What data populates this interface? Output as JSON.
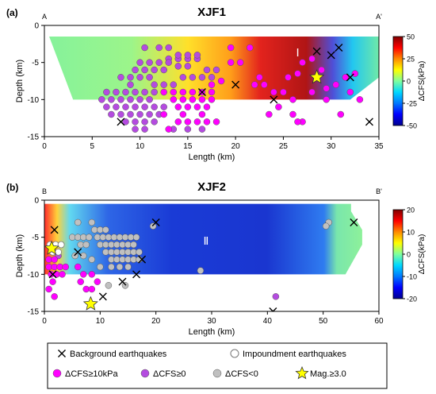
{
  "colors": {
    "background_marker": "#000000",
    "cfs_ge_10kpa": "#ff00ff",
    "cfs_ge_0": "#b44be0",
    "cfs_lt_0": "#c0c0c0",
    "mag_star": "#ffff00",
    "colormap": [
      "#00008f",
      "#0000ff",
      "#0078ff",
      "#00d8ff",
      "#7fff9f",
      "#ffff00",
      "#ff8a00",
      "#ff0000",
      "#800000"
    ]
  },
  "chart_data": [
    {
      "type": "scatter",
      "panel_label": "(a)",
      "title": "XJF1",
      "profile_start": "A",
      "profile_end": "A'",
      "xlabel": "Length (km)",
      "ylabel": "Depth (km)",
      "xlim": [
        0,
        35
      ],
      "ylim": [
        -15,
        0
      ],
      "xticks": [
        0,
        5,
        10,
        15,
        20,
        25,
        30,
        35
      ],
      "yticks": [
        0,
        -5,
        -10,
        -15
      ],
      "region_label": "Ⅰ",
      "colorbar": {
        "label": "ΔCFS(kPa)",
        "min": -50,
        "max": 50,
        "ticks": [
          50,
          25,
          0,
          -25,
          -50
        ]
      },
      "series": [
        {
          "name": "Background earthquakes",
          "marker": "x",
          "x": [
            8,
            16.5,
            20,
            24,
            28.5,
            30,
            30.8,
            32,
            34
          ],
          "y": [
            -13,
            -9,
            -8,
            -10,
            -3.5,
            -4,
            -3,
            -7,
            -13
          ]
        },
        {
          "name": "ΔCFS≥10kPa",
          "marker": "circle",
          "x": [
            12.5,
            13.5,
            14.5,
            15.5,
            16.5,
            17.5,
            13.5,
            14.5,
            15.5,
            16.5,
            17.5,
            14,
            15,
            16,
            17,
            12.5,
            14.5,
            16.5,
            14,
            15,
            16,
            17,
            18,
            13,
            17.5,
            18.5,
            19.5,
            20.5,
            19.5,
            21.5,
            22.5,
            22,
            23,
            24,
            25.5,
            26.5,
            27,
            28,
            29,
            29.5,
            25,
            26,
            28,
            29.5,
            30.5,
            31.5,
            23.5,
            26,
            27,
            31,
            32.5,
            32,
            33,
            24.5,
            26.5
          ],
          "y": [
            -9,
            -9,
            -9,
            -9,
            -9,
            -9,
            -10,
            -10,
            -10,
            -10,
            -10,
            -11,
            -11,
            -11,
            -11,
            -12,
            -12,
            -12,
            -13,
            -13,
            -13,
            -13,
            -13,
            -14,
            -8,
            -7.5,
            -5,
            -5,
            -3,
            -3,
            -7,
            -8,
            -8,
            -9,
            -7,
            -6.5,
            -5,
            -4.5,
            -6,
            -8.5,
            -9,
            -10,
            -9,
            -10,
            -8,
            -7,
            -12,
            -12,
            -13,
            -12,
            -6.5,
            -9,
            -10,
            -11,
            -13
          ]
        },
        {
          "name": "ΔCFS≥0",
          "marker": "circle",
          "x": [
            6.5,
            7.5,
            8.5,
            9.5,
            10.5,
            11.5,
            6,
            7,
            8,
            9,
            10,
            11,
            6.5,
            7.5,
            8.5,
            9.5,
            10.5,
            11.5,
            12.5,
            7,
            8,
            9,
            10,
            11,
            12,
            8.5,
            9.5,
            10.5,
            11.5,
            8,
            9,
            10,
            11,
            9.5,
            10.5,
            11.5,
            12.5,
            13,
            14,
            15,
            16,
            10,
            11,
            12,
            13,
            14,
            15,
            9,
            11.5,
            12.5,
            13.5,
            14.5,
            15.5,
            16.5,
            17.5,
            10.5,
            12,
            13,
            14,
            15,
            16,
            17,
            18,
            9.5,
            13.5,
            15,
            16.5,
            10.5
          ],
          "y": [
            -9,
            -9,
            -9,
            -9,
            -9,
            -9,
            -10,
            -10,
            -10,
            -10,
            -10,
            -10,
            -11,
            -11,
            -11,
            -11,
            -11,
            -11,
            -11,
            -12,
            -12,
            -12,
            -12,
            -12,
            -12,
            -13,
            -13,
            -13,
            -13,
            -7,
            -7,
            -7,
            -7,
            -6,
            -6,
            -6,
            -6,
            -4.5,
            -4.5,
            -4.5,
            -4.5,
            -5,
            -5,
            -5,
            -5,
            -5.5,
            -5.5,
            -8,
            -8,
            -8,
            -8,
            -7,
            -7,
            -7,
            -7,
            -3,
            -3,
            -3,
            -4,
            -4,
            -4,
            -6,
            -6,
            -14,
            -14,
            -14,
            -14,
            -14
          ]
        },
        {
          "name": "Mag.≥3.0",
          "marker": "star",
          "x": [
            28.5
          ],
          "y": [
            -7
          ]
        }
      ],
      "cross_section": {
        "top_edge": [
          [
            0.5,
            -1.5
          ],
          [
            35,
            -1.5
          ]
        ],
        "bottom_edge": [
          [
            3,
            -10
          ],
          [
            32,
            -10
          ],
          [
            35,
            -7
          ]
        ]
      }
    },
    {
      "type": "scatter",
      "panel_label": "(b)",
      "title": "XJF2",
      "profile_start": "B",
      "profile_end": "B'",
      "xlabel": "Length (km)",
      "ylabel": "Depth (km)",
      "xlim": [
        0,
        60
      ],
      "ylim": [
        -15,
        0
      ],
      "xticks": [
        0,
        10,
        20,
        30,
        40,
        50,
        60
      ],
      "yticks": [
        0,
        -5,
        -10,
        -15
      ],
      "region_label": "Ⅱ",
      "colorbar": {
        "label": "ΔCFS(kPa)",
        "min": -20,
        "max": 20,
        "ticks": [
          20,
          10,
          0,
          -10,
          -20
        ]
      },
      "series": [
        {
          "name": "Background earthquakes",
          "marker": "x",
          "x": [
            1.8,
            1.5,
            6,
            17.5,
            20,
            14,
            16.5,
            10.5,
            41,
            55.5
          ],
          "y": [
            -4,
            -10,
            -7,
            -8,
            -3,
            -11,
            -10,
            -13,
            -15,
            -3
          ]
        },
        {
          "name": "Impoundment earthquakes",
          "marker": "circle-open",
          "x": [
            1,
            2,
            3,
            1.5,
            2.5
          ],
          "y": [
            -6,
            -6,
            -6,
            -7,
            -7
          ]
        },
        {
          "name": "ΔCFS≥10kPa",
          "marker": "circle",
          "x": [
            0.8,
            1.8,
            0.8,
            1.8,
            2.8,
            3.8,
            1.2,
            2.2,
            3.2,
            1.5,
            0.8,
            1.8,
            6,
            7,
            8.5,
            9.5,
            6.5,
            7.5,
            8.5
          ],
          "y": [
            -8,
            -8,
            -9,
            -9,
            -9,
            -9,
            -10,
            -10,
            -10,
            -11,
            -12,
            -13,
            -9,
            -10,
            -10,
            -11,
            -11,
            -12,
            -12
          ]
        },
        {
          "name": "ΔCFS≥0",
          "marker": "circle",
          "x": [
            2.5,
            41.5
          ],
          "y": [
            -7.5,
            -13
          ]
        },
        {
          "name": "ΔCFS<0",
          "marker": "circle",
          "x": [
            6,
            8.5,
            9.5,
            10.5,
            11.5,
            12.5,
            13.5,
            14.5,
            15.5,
            16.5,
            10,
            11,
            12,
            13,
            14,
            15,
            16,
            11,
            12,
            13,
            14,
            15,
            16,
            17,
            12,
            13,
            14,
            15,
            16,
            17,
            13.5,
            15,
            9,
            10,
            11,
            5,
            6,
            7,
            8,
            6.5,
            7.5,
            5.5,
            7,
            8.5,
            10,
            12,
            19.5,
            28,
            51,
            50.5,
            11.5,
            14.5
          ],
          "y": [
            -3,
            -3,
            -5,
            -5,
            -5,
            -5,
            -5,
            -5,
            -5,
            -5,
            -6,
            -6,
            -6,
            -6,
            -6,
            -6,
            -6,
            -7,
            -7,
            -7,
            -7,
            -7,
            -7,
            -7,
            -8,
            -8,
            -8,
            -8,
            -8,
            -8,
            -9,
            -9,
            -4,
            -4,
            -4,
            -5,
            -5,
            -5,
            -5,
            -6,
            -6,
            -7.5,
            -7.5,
            -8,
            -9,
            -9,
            -3.5,
            -9.5,
            -3,
            -3.5,
            -11.5,
            -11.5
          ]
        },
        {
          "name": "Mag.≥3.0",
          "marker": "star",
          "x": [
            1.3,
            8.3
          ],
          "y": [
            -6.5,
            -14
          ]
        }
      ],
      "cross_section": {
        "top_edge": [
          [
            0,
            -0.5
          ],
          [
            55,
            -0.5
          ],
          [
            55,
            -1.5
          ]
        ],
        "bottom_edge": [
          [
            0,
            -10
          ],
          [
            54,
            -10
          ],
          [
            57,
            -6
          ],
          [
            57,
            -4
          ]
        ]
      }
    }
  ],
  "legend": {
    "items": [
      {
        "label": "Background earthquakes",
        "marker": "x"
      },
      {
        "label": "Impoundment earthquakes",
        "marker": "circle-open"
      },
      {
        "label": "ΔCFS≥10kPa",
        "marker": "circle-magenta"
      },
      {
        "label": "ΔCFS≥0",
        "marker": "circle-purple"
      },
      {
        "label": "ΔCFS<0",
        "marker": "circle-gray"
      },
      {
        "label": "Mag.≥3.0",
        "marker": "star"
      }
    ]
  }
}
